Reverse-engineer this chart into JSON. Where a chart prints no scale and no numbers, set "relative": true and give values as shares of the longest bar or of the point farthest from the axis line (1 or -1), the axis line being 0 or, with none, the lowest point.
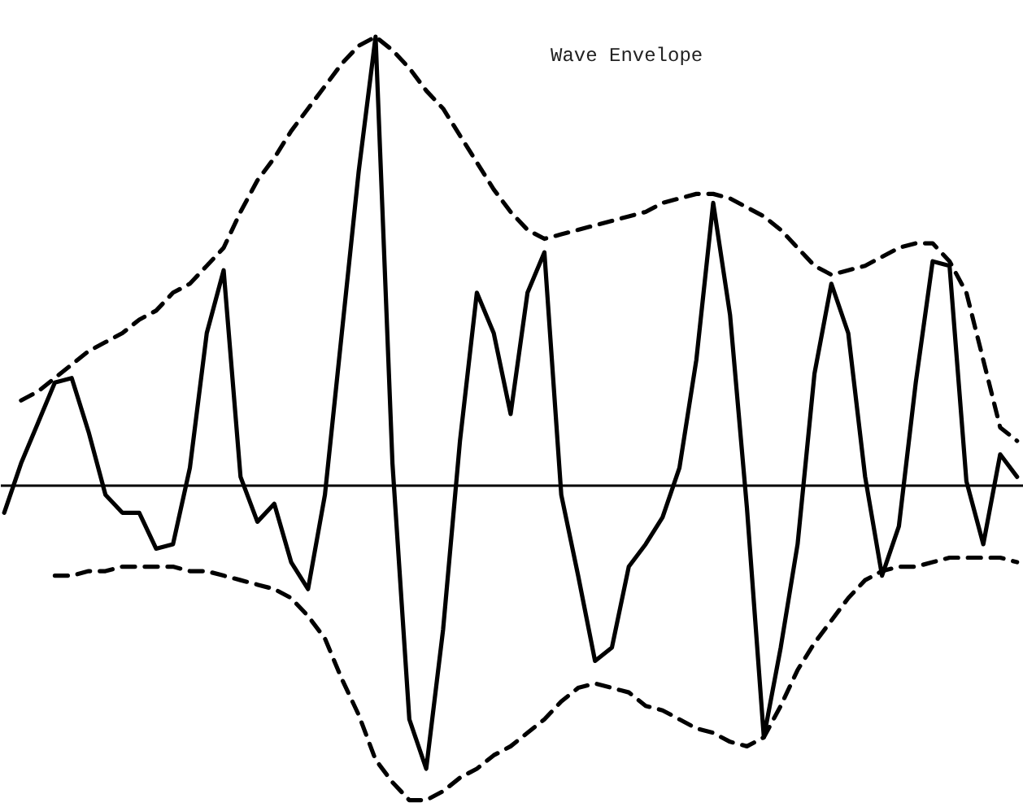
{
  "chart_data": {
    "type": "line",
    "relative": true,
    "marker": "none",
    "categories": [
      null,
      null,
      null,
      null,
      null,
      null,
      null,
      null,
      null,
      null,
      null,
      null,
      null,
      null,
      null,
      null,
      null,
      null,
      null,
      null,
      null,
      null,
      null,
      null,
      null,
      null,
      null,
      null,
      null,
      null,
      null,
      null,
      null,
      null,
      null,
      null,
      null,
      null,
      null,
      null,
      null,
      null,
      null,
      null,
      null,
      null,
      null,
      null,
      null,
      null,
      null,
      null,
      null,
      null,
      null,
      null,
      null,
      null,
      null,
      null,
      null
    ],
    "series": [
      {
        "color": "#000000",
        "line_style": "solid",
        "values": [
          -0.06,
          0.05,
          0.14,
          0.23,
          0.24,
          0.12,
          -0.02,
          -0.06,
          -0.06,
          -0.14,
          -0.13,
          0.04,
          0.34,
          0.48,
          0.02,
          -0.08,
          -0.04,
          -0.17,
          -0.23,
          -0.02,
          0.34,
          0.7,
          1.0,
          0.05,
          -0.52,
          -0.63,
          -0.32,
          0.1,
          0.43,
          0.34,
          0.16,
          0.43,
          0.52,
          -0.02,
          -0.2,
          -0.39,
          -0.36,
          -0.18,
          -0.13,
          -0.07,
          0.04,
          0.28,
          0.63,
          0.38,
          -0.05,
          -0.56,
          -0.36,
          -0.13,
          0.25,
          0.45,
          0.34,
          0.02,
          -0.2,
          -0.09,
          0.23,
          0.5,
          0.49,
          0.01,
          -0.13,
          0.07,
          0.02
        ]
      },
      {
        "color": "#000000",
        "line_style": "dashed",
        "values": [
          null,
          0.19,
          0.21,
          0.24,
          0.27,
          0.3,
          0.32,
          0.34,
          0.37,
          0.39,
          0.43,
          0.45,
          0.49,
          0.53,
          0.61,
          0.68,
          0.73,
          0.79,
          0.84,
          0.89,
          0.94,
          0.98,
          1.0,
          0.97,
          0.93,
          0.88,
          0.84,
          0.78,
          0.72,
          0.66,
          0.61,
          0.57,
          0.55,
          0.56,
          0.57,
          0.58,
          0.59,
          0.6,
          0.61,
          0.63,
          0.64,
          0.65,
          0.65,
          0.64,
          0.62,
          0.6,
          0.57,
          0.53,
          0.49,
          0.47,
          0.48,
          0.49,
          0.51,
          0.53,
          0.54,
          0.54,
          0.5,
          0.43,
          0.28,
          0.13,
          0.1
        ]
      },
      {
        "color": "#000000",
        "line_style": "dashed",
        "values": [
          null,
          null,
          null,
          -0.2,
          -0.2,
          -0.19,
          -0.19,
          -0.18,
          -0.18,
          -0.18,
          -0.18,
          -0.19,
          -0.19,
          -0.2,
          -0.21,
          -0.22,
          -0.23,
          -0.25,
          -0.29,
          -0.34,
          -0.43,
          -0.51,
          -0.61,
          -0.66,
          -0.7,
          -0.7,
          -0.68,
          -0.65,
          -0.63,
          -0.6,
          -0.58,
          -0.55,
          -0.52,
          -0.48,
          -0.45,
          -0.44,
          -0.45,
          -0.46,
          -0.49,
          -0.5,
          -0.52,
          -0.54,
          -0.55,
          -0.57,
          -0.58,
          -0.56,
          -0.49,
          -0.41,
          -0.35,
          -0.3,
          -0.25,
          -0.21,
          -0.19,
          -0.18,
          -0.18,
          -0.17,
          -0.16,
          -0.16,
          -0.16,
          -0.16,
          -0.17
        ]
      }
    ],
    "annotations": [
      "Wave Envelope"
    ]
  }
}
